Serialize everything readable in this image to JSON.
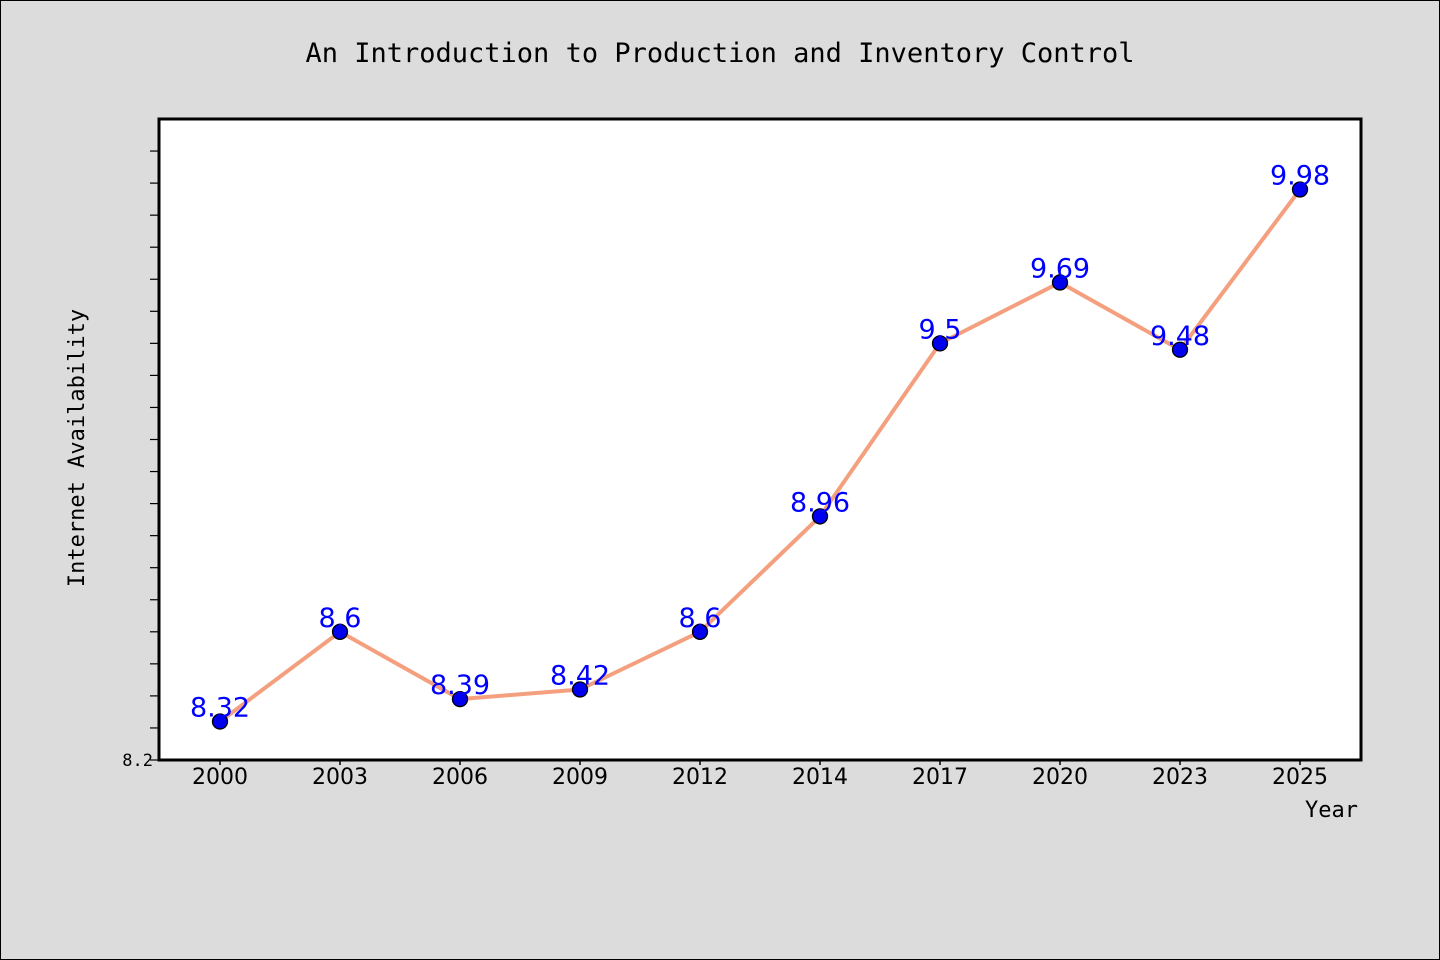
{
  "chart_data": {
    "type": "line",
    "title": "An Introduction to Production and Inventory Control",
    "xlabel": "Year",
    "ylabel": "Internet Availability",
    "categories": [
      "2000",
      "2003",
      "2006",
      "2009",
      "2012",
      "2014",
      "2017",
      "2020",
      "2023",
      "2025"
    ],
    "series": [
      {
        "values": [
          8.32,
          8.6,
          8.39,
          8.42,
          8.6,
          8.96,
          9.5,
          9.69,
          9.48,
          9.98
        ]
      }
    ],
    "data_labels": [
      "8.32",
      "8.6",
      "8.39",
      "8.42",
      "8.6",
      "8.96",
      "9.5",
      "9.69",
      "9.48",
      "9.98"
    ],
    "ylim": [
      8.2,
      10.2
    ],
    "ytick_labels": [
      "8.2"
    ],
    "grid": false,
    "legend": "none",
    "colors": {
      "line": "#f4a07f",
      "marker": "#0000ee",
      "data_label": "#0000ff",
      "plot_bg": "#ffffff",
      "page_bg": "#dcdcdc"
    }
  }
}
